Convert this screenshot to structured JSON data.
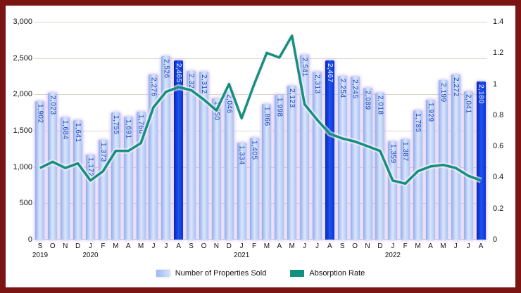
{
  "chart_data": {
    "type": "combo-bar-line",
    "title": "",
    "months": [
      "S",
      "O",
      "N",
      "D",
      "J",
      "F",
      "M",
      "A",
      "M",
      "J",
      "J",
      "A",
      "S",
      "O",
      "N",
      "D",
      "J",
      "F",
      "M",
      "A",
      "M",
      "J",
      "J",
      "A",
      "S",
      "O",
      "N",
      "D",
      "J",
      "F",
      "M",
      "A",
      "M",
      "J",
      "J",
      "A"
    ],
    "years": [
      {
        "label": "2019",
        "index": 0
      },
      {
        "label": "2020",
        "index": 4
      },
      {
        "label": "2021",
        "index": 16
      },
      {
        "label": "2022",
        "index": 28
      }
    ],
    "series": [
      {
        "name": "Number of Properties Sold",
        "type": "bar",
        "values": [
          1902,
          2023,
          1684,
          1641,
          1172,
          1373,
          1755,
          1691,
          1760,
          2276,
          2526,
          2465,
          2322,
          2312,
          1950,
          2046,
          1334,
          1405,
          1866,
          1998,
          2123,
          2541,
          2313,
          2467,
          2254,
          2245,
          2089,
          2018,
          1359,
          1387,
          1785,
          1929,
          2199,
          2272,
          2041,
          2180
        ],
        "highlight_indices": [
          11,
          23,
          35
        ]
      },
      {
        "name": "Absorption Rate",
        "type": "line",
        "values": [
          0.46,
          0.5,
          0.46,
          0.49,
          0.38,
          0.44,
          0.57,
          0.57,
          0.62,
          0.85,
          0.95,
          0.98,
          0.96,
          0.9,
          0.83,
          1.0,
          0.78,
          1.0,
          1.2,
          1.17,
          1.31,
          0.87,
          0.77,
          0.68,
          0.65,
          0.63,
          0.6,
          0.57,
          0.38,
          0.36,
          0.44,
          0.47,
          0.48,
          0.46,
          0.41,
          0.38
        ]
      }
    ],
    "left_axis": {
      "ticks": [
        "3,000",
        "2,500",
        "2,000",
        "1,500",
        "1,000",
        "500",
        "0"
      ],
      "max": 3000
    },
    "right_axis": {
      "ticks": [
        "1.4",
        "1.2",
        "1",
        "0.8",
        "0.6",
        "0.4",
        "0.2",
        "0"
      ],
      "max": 1.4
    },
    "grid": true,
    "legend_position": "bottom",
    "colors": {
      "bar_light": "#aac4f3",
      "bar_highlight": "#0b38d8",
      "line": "#11917e",
      "bar_label": "#2244bb",
      "bar_label_on_dark": "#ffffff",
      "frame_border": "#7b1513",
      "gridline": "#ded5cb"
    }
  },
  "legend": {
    "items": [
      {
        "label": "Number of Properties Sold"
      },
      {
        "label": "Absorption Rate"
      }
    ]
  }
}
